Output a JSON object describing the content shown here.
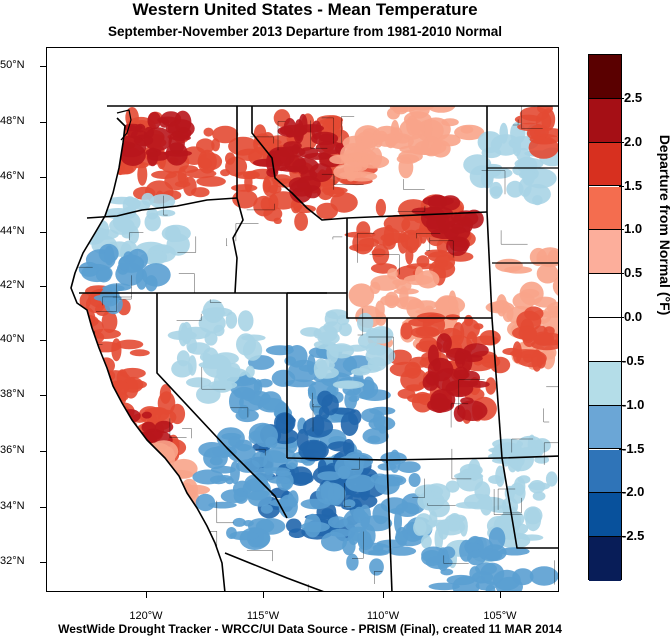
{
  "title": "Western United States - Mean Temperature",
  "subtitle": "September-November 2013  Departure from 1981-2010 Normal",
  "footer": "WestWide Drought Tracker - WRCC/UI  Data Source - PRISM (Final), created 11 MAR 2014",
  "latitude_labels": [
    "50°N",
    "48°N",
    "46°N",
    "44°N",
    "42°N",
    "40°N",
    "38°N",
    "36°N",
    "34°N",
    "32°N"
  ],
  "longitude_labels": [
    "120°W",
    "115°W",
    "110°W",
    "105°W"
  ],
  "colorbar": {
    "title": "Departure from Normal (°F)",
    "tick_labels": [
      "2.5",
      "2.0",
      "1.5",
      "1.0",
      "0.5",
      "0.0",
      "-0.5",
      "-1.0",
      "-1.5",
      "-2.0",
      "-2.5"
    ],
    "colors": [
      "#5a0000",
      "#a50f15",
      "#d7301f",
      "#f46d4f",
      "#fcae9b",
      "#ffffff",
      "#ffffff",
      "#b4dde8",
      "#6ba6d6",
      "#2f74b8",
      "#08519c",
      "#081d58"
    ]
  },
  "map_colors": {
    "warm_dark": "#b8161c",
    "warm": "#e34a33",
    "warm_light": "#f8a48a",
    "cool_light": "#a8d4e6",
    "cool": "#5a9ed2",
    "cool_dark": "#2166ac",
    "boundary": "#000000"
  }
}
